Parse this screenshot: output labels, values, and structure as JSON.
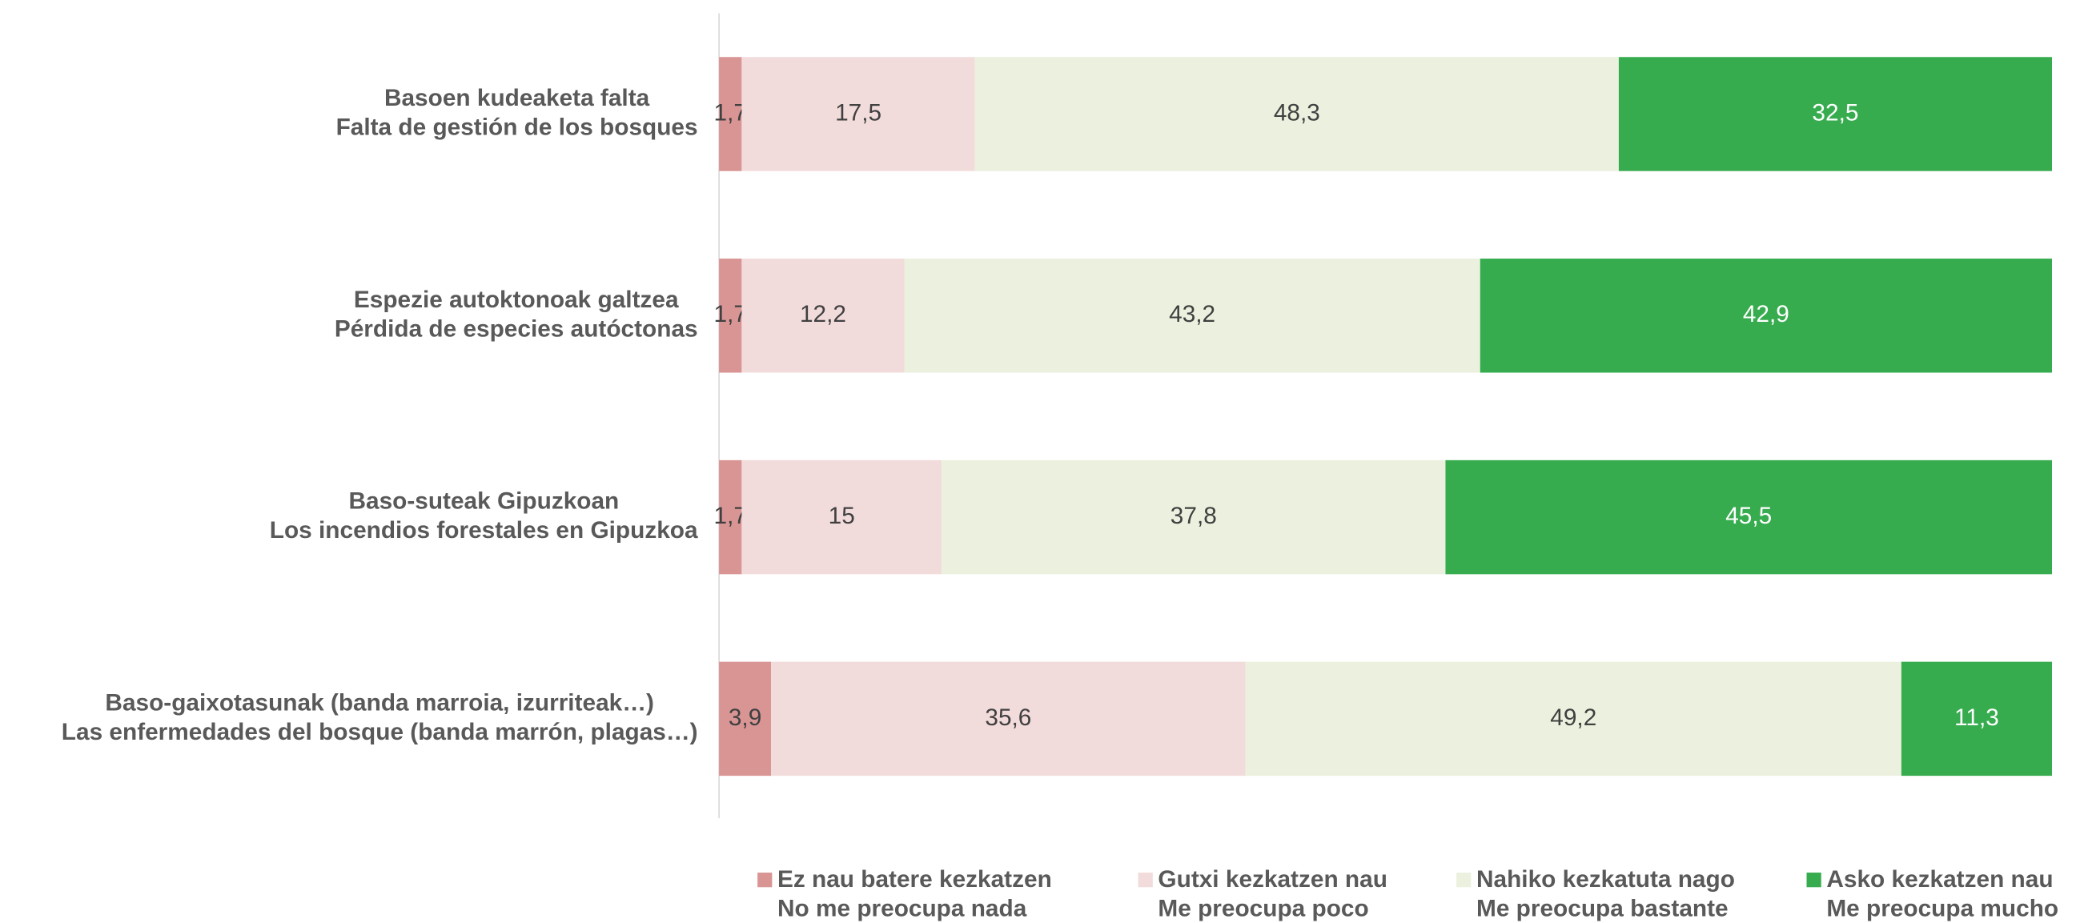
{
  "chart_data": {
    "type": "stacked_bar_horizontal",
    "categories": [
      [
        "Basoen kudeaketa falta",
        "Falta de gestión de los bosques"
      ],
      [
        "Espezie autoktonoak galtzea",
        "Pérdida de especies autóctonas"
      ],
      [
        "Baso-suteak Gipuzkoan",
        "Los incendios forestales en Gipuzkoa"
      ],
      [
        "Baso-gaixotasunak (banda marroia, izurriteak…)",
        "Las enfermedades del bosque (banda marrón, plagas…)"
      ]
    ],
    "xlim": [
      0,
      100
    ],
    "series": [
      {
        "name": [
          "Ez nau batere kezkatzen",
          "No me preocupa nada"
        ],
        "color": "#d99594",
        "label_color": "#404040",
        "values": [
          1.7,
          1.7,
          1.7,
          3.9
        ],
        "value_labels": [
          "1,7",
          "1,7",
          "1,7",
          "3,9"
        ]
      },
      {
        "name": [
          "Gutxi kezkatzen nau",
          "Me preocupa poco"
        ],
        "color": "#f2dcdb",
        "label_color": "#404040",
        "values": [
          17.5,
          12.2,
          15,
          35.6
        ],
        "value_labels": [
          "17,5",
          "12,2",
          "15",
          "35,6"
        ]
      },
      {
        "name": [
          "Nahiko kezkatuta nago",
          "Me preocupa bastante"
        ],
        "color": "#ebf1de",
        "label_color": "#404040",
        "values": [
          48.3,
          43.2,
          37.8,
          49.2
        ],
        "value_labels": [
          "48,3",
          "43,2",
          "37,8",
          "49,2"
        ]
      },
      {
        "name": [
          "Asko kezkatzen nau",
          "Me preocupa mucho"
        ],
        "color": "#37ac4f",
        "label_color": "#ffffff",
        "values": [
          32.5,
          42.9,
          45.5,
          11.3
        ],
        "value_labels": [
          "32,5",
          "42,9",
          "45,5",
          "11,3"
        ]
      }
    ],
    "legend": "bottom"
  }
}
